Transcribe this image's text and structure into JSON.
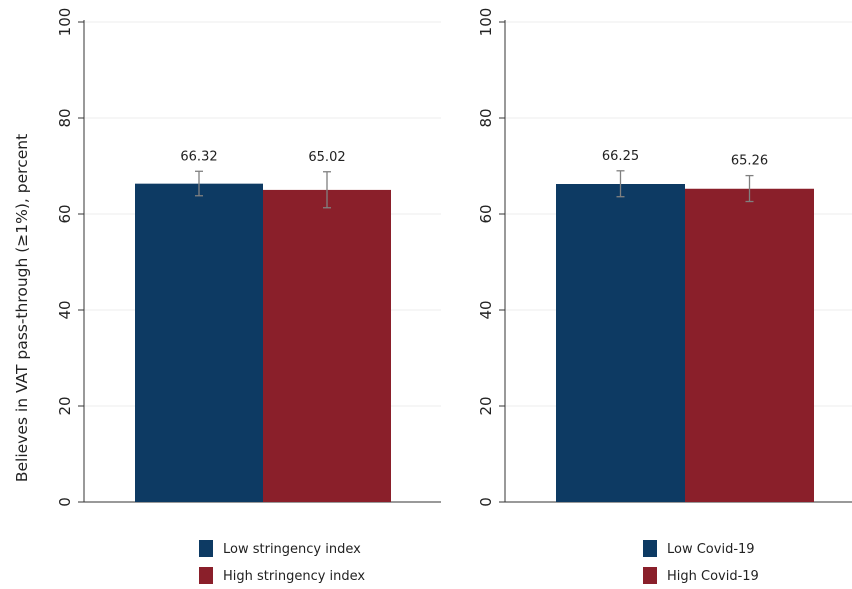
{
  "colors": {
    "series_low": "#0d3a63",
    "series_high": "#8a1f2a",
    "grid": "#eeeeee",
    "axis": "#333333",
    "errorbar": "#808080"
  },
  "chart_data": {
    "ylabel": "Believes in VAT pass-through (≥1%), percent",
    "panels": [
      {
        "type": "bar",
        "ylim": [
          0,
          100
        ],
        "yticks": [
          "0",
          "20",
          "40",
          "60",
          "80",
          "100"
        ],
        "grid": true,
        "legend_position": "bottom",
        "series": [
          {
            "name": "Low stringency index",
            "value": 66.32,
            "label": "66.32",
            "ci": [
              63.8,
              68.9
            ]
          },
          {
            "name": "High stringency index",
            "value": 65.02,
            "label": "65.02",
            "ci": [
              61.3,
              68.8
            ]
          }
        ]
      },
      {
        "type": "bar",
        "ylim": [
          0,
          100
        ],
        "yticks": [
          "0",
          "20",
          "40",
          "60",
          "80",
          "100"
        ],
        "grid": true,
        "legend_position": "bottom",
        "series": [
          {
            "name": "Low Covid-19",
            "value": 66.25,
            "label": "66.25",
            "ci": [
              63.6,
              69.0
            ]
          },
          {
            "name": "High Covid-19",
            "value": 65.26,
            "label": "65.26",
            "ci": [
              62.6,
              68.0
            ]
          }
        ]
      }
    ]
  }
}
